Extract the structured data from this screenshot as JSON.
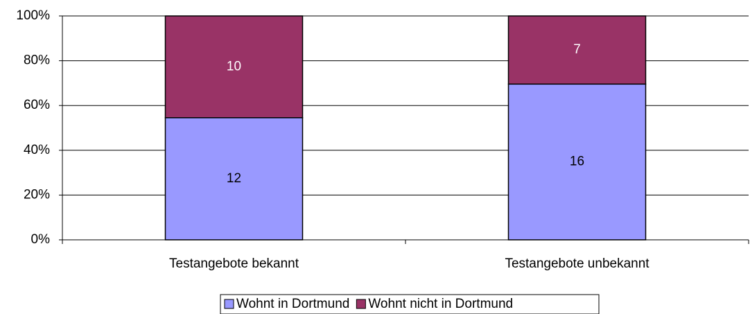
{
  "chart_data": {
    "type": "bar",
    "stacking": "percent",
    "categories": [
      "Testangebote bekannt",
      "Testangebote unbekannt"
    ],
    "series": [
      {
        "name": "Wohnt in Dortmund",
        "color": "#9999ff",
        "values": [
          12,
          16
        ]
      },
      {
        "name": "Wohnt nicht in Dortmund",
        "color": "#993366",
        "values": [
          10,
          7
        ]
      }
    ],
    "ylim": [
      0,
      100
    ],
    "yticks": [
      {
        "value": 0,
        "label": "0%"
      },
      {
        "value": 20,
        "label": "20%"
      },
      {
        "value": 40,
        "label": "40%"
      },
      {
        "value": 60,
        "label": "60%"
      },
      {
        "value": 80,
        "label": "80%"
      },
      {
        "value": 100,
        "label": "100%"
      }
    ],
    "grid": true,
    "legend": "bottom"
  }
}
